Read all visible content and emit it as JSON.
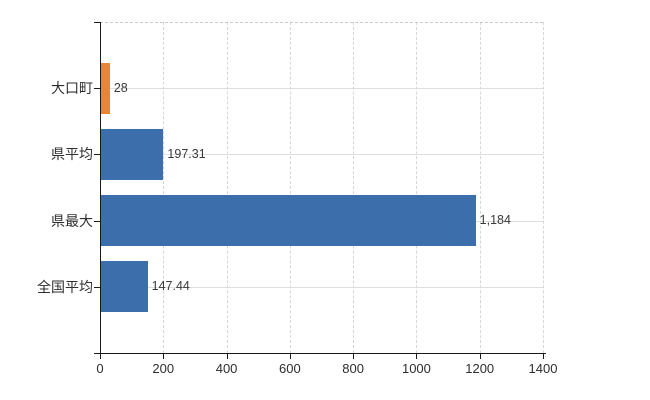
{
  "chart_data": {
    "type": "bar",
    "orientation": "horizontal",
    "title": "",
    "xlabel": "",
    "ylabel": "",
    "categories": [
      "大口町",
      "県平均",
      "県最大",
      "全国平均"
    ],
    "values": [
      28,
      197.31,
      1184,
      147.44
    ],
    "value_labels": [
      "28",
      "197.31",
      "1,184",
      "147.44"
    ],
    "bar_colors": [
      "#EC8430",
      "#3C6EAC",
      "#3C6EAC",
      "#3C6EAC"
    ],
    "xlim": [
      0,
      1400
    ],
    "x_ticks": [
      0,
      200,
      400,
      600,
      800,
      1000,
      1200,
      1400
    ],
    "x_tick_labels": [
      "0",
      "200",
      "400",
      "600",
      "800",
      "1000",
      "1200",
      "1400"
    ],
    "grid": true,
    "legend": false,
    "colors": {
      "bar_default": "#3C6EAC",
      "bar_highlight": "#EC8430",
      "axis": "#1b1b1b",
      "grid_vertical": "#d6d6d6",
      "grid_horizontal": "#dedede",
      "text": "#2e2e2e",
      "value_text": "#3a3a3a",
      "background": "#ffffff"
    }
  }
}
